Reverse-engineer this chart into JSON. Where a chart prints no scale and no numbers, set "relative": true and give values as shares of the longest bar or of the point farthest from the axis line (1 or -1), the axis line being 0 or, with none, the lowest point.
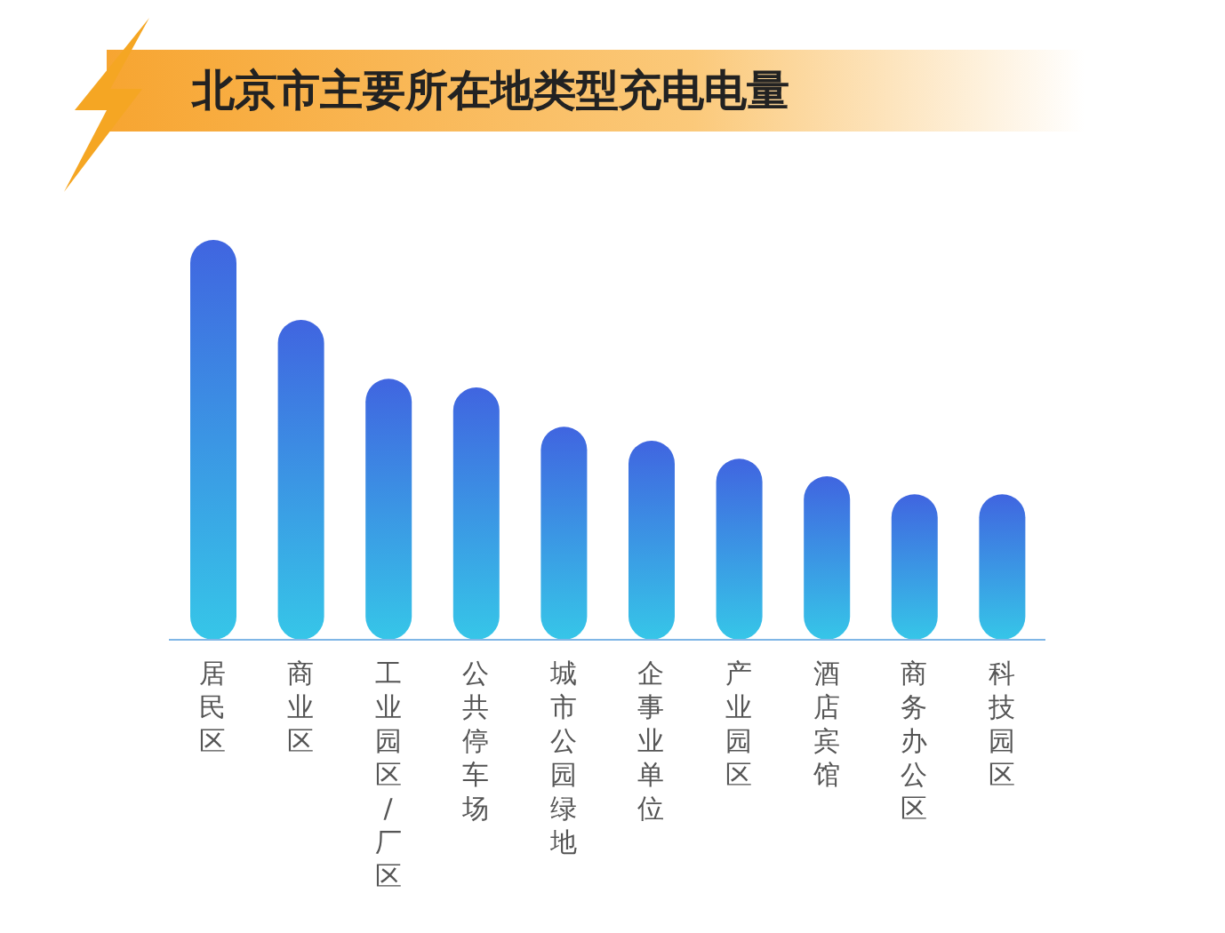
{
  "chart_data": {
    "type": "bar",
    "title": "北京市主要所在地类型充电电量",
    "relative": true,
    "categories": [
      "居民区",
      "商业区",
      "工业园区/厂区",
      "公共停车场",
      "城市公园绿地",
      "企事业单位",
      "产业园区",
      "酒店宾馆",
      "商务办公区",
      "科技园区"
    ],
    "values": [
      1,
      0.8,
      0.653,
      0.631,
      0.533,
      0.498,
      0.453,
      0.409,
      0.364,
      0.364
    ],
    "color": "#4065e0"
  }
}
